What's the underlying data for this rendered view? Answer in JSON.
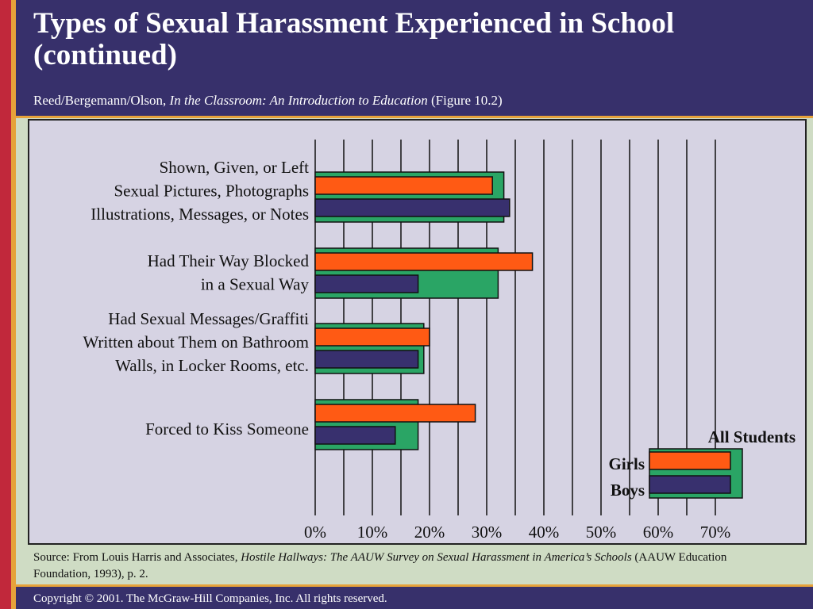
{
  "slide": {
    "title_line1": "Types of Sexual Harassment Experienced in School",
    "title_line2": "(continued)",
    "subtitle_authors": "Reed/Bergemann/Olson,",
    "subtitle_book": "In the Classroom:  An Introduction to Education",
    "subtitle_figure": "(Figure 10.2)",
    "source_prefix": "Source: From Louis Harris and Associates,",
    "source_title": "Hostile Hallways:  The AAUW Survey on Sexual Harassment in America’s Schools",
    "source_suffix": "(AAUW Education Foundation, 1993), p. 2.",
    "copyright": "Copyright © 2001. The McGraw-Hill Companies, Inc. All rights reserved."
  },
  "colors": {
    "all_students": "#2aa565",
    "girls": "#ff5a14",
    "boys": "#38306e",
    "header": "#37306b",
    "chart_bg": "#d6d3e3"
  },
  "chart_data": {
    "type": "bar",
    "orientation": "horizontal",
    "categories": [
      [
        "Shown, Given, or Left",
        "Sexual  Pictures, Photographs",
        "Illustrations, Messages, or Notes"
      ],
      [
        "Had Their Way Blocked",
        "in a Sexual Way"
      ],
      [
        "Had Sexual Messages/Graffiti",
        "Written about Them on Bathroom",
        "Walls, in Locker Rooms, etc."
      ],
      [
        "Forced to Kiss Someone"
      ]
    ],
    "series": [
      {
        "name": "All Students",
        "values": [
          33,
          32,
          19,
          18
        ]
      },
      {
        "name": "Girls",
        "values": [
          31,
          38,
          20,
          28
        ]
      },
      {
        "name": "Boys",
        "values": [
          34,
          18,
          18,
          14
        ]
      }
    ],
    "xlim": [
      0,
      70
    ],
    "x_ticks": [
      "0%",
      "10%",
      "20%",
      "30%",
      "40%",
      "50%",
      "60%",
      "70%"
    ],
    "legend": {
      "title": "All Students",
      "girls_label": "Girls",
      "boys_label": "Boys",
      "placement": "bottom-right"
    },
    "grid": true
  }
}
